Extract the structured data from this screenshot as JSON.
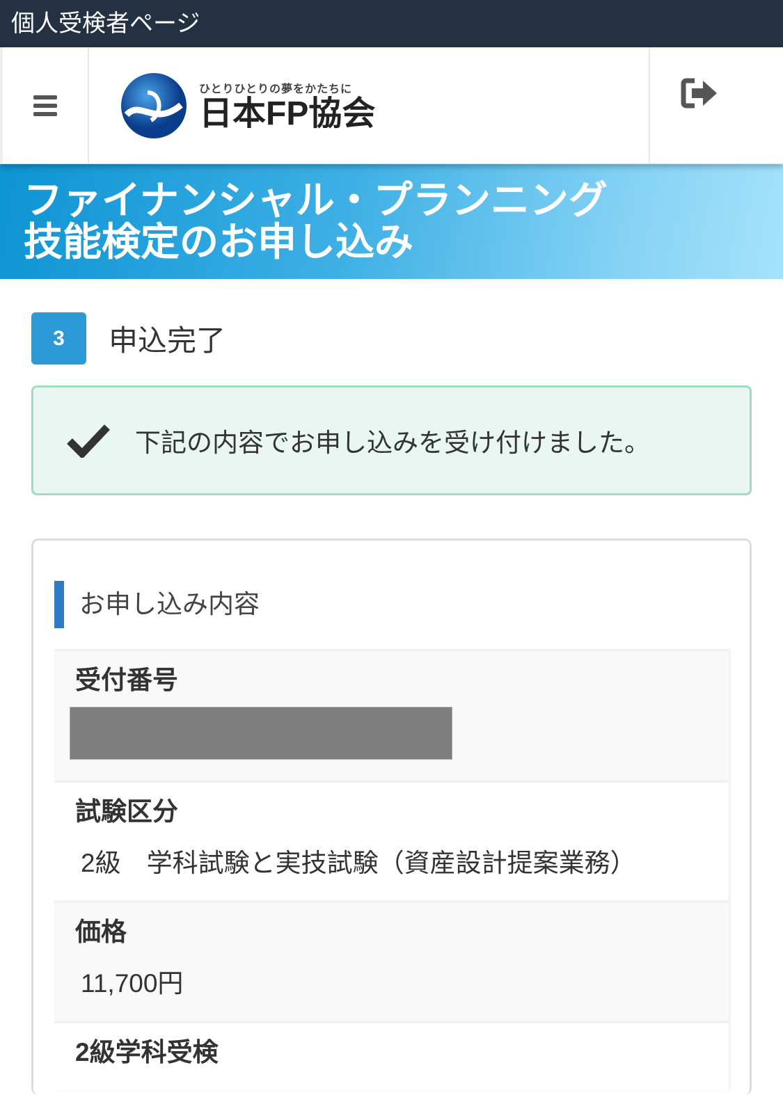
{
  "topbar": {
    "title": "個人受検者ページ"
  },
  "header": {
    "logo_tagline": "ひとりひとりの夢をかたちに",
    "logo_name": "日本FP協会",
    "menu_icon": "hamburger-icon",
    "logout_icon": "sign-out-icon"
  },
  "banner": {
    "line1": "ファイナンシャル・プランニング",
    "line2": "技能検定のお申し込み"
  },
  "step": {
    "number": "3",
    "label": "申込完了"
  },
  "alert": {
    "icon": "check-icon",
    "message": "下記の内容でお申し込みを受け付けました。",
    "bg": "#e9f6f1",
    "border": "#9fdcc0"
  },
  "details": {
    "heading": "お申し込み内容",
    "fields": [
      {
        "label": "受付番号",
        "value": ""
      },
      {
        "label": "試験区分",
        "value": "2級　学科試験と実技試験（資産設計提案業務）"
      },
      {
        "label": "価格",
        "value": "11,700円"
      },
      {
        "label": "2級学科受検",
        "value": ""
      }
    ]
  },
  "colors": {
    "accent": "#2b9ad6",
    "topbar": "#233142"
  }
}
